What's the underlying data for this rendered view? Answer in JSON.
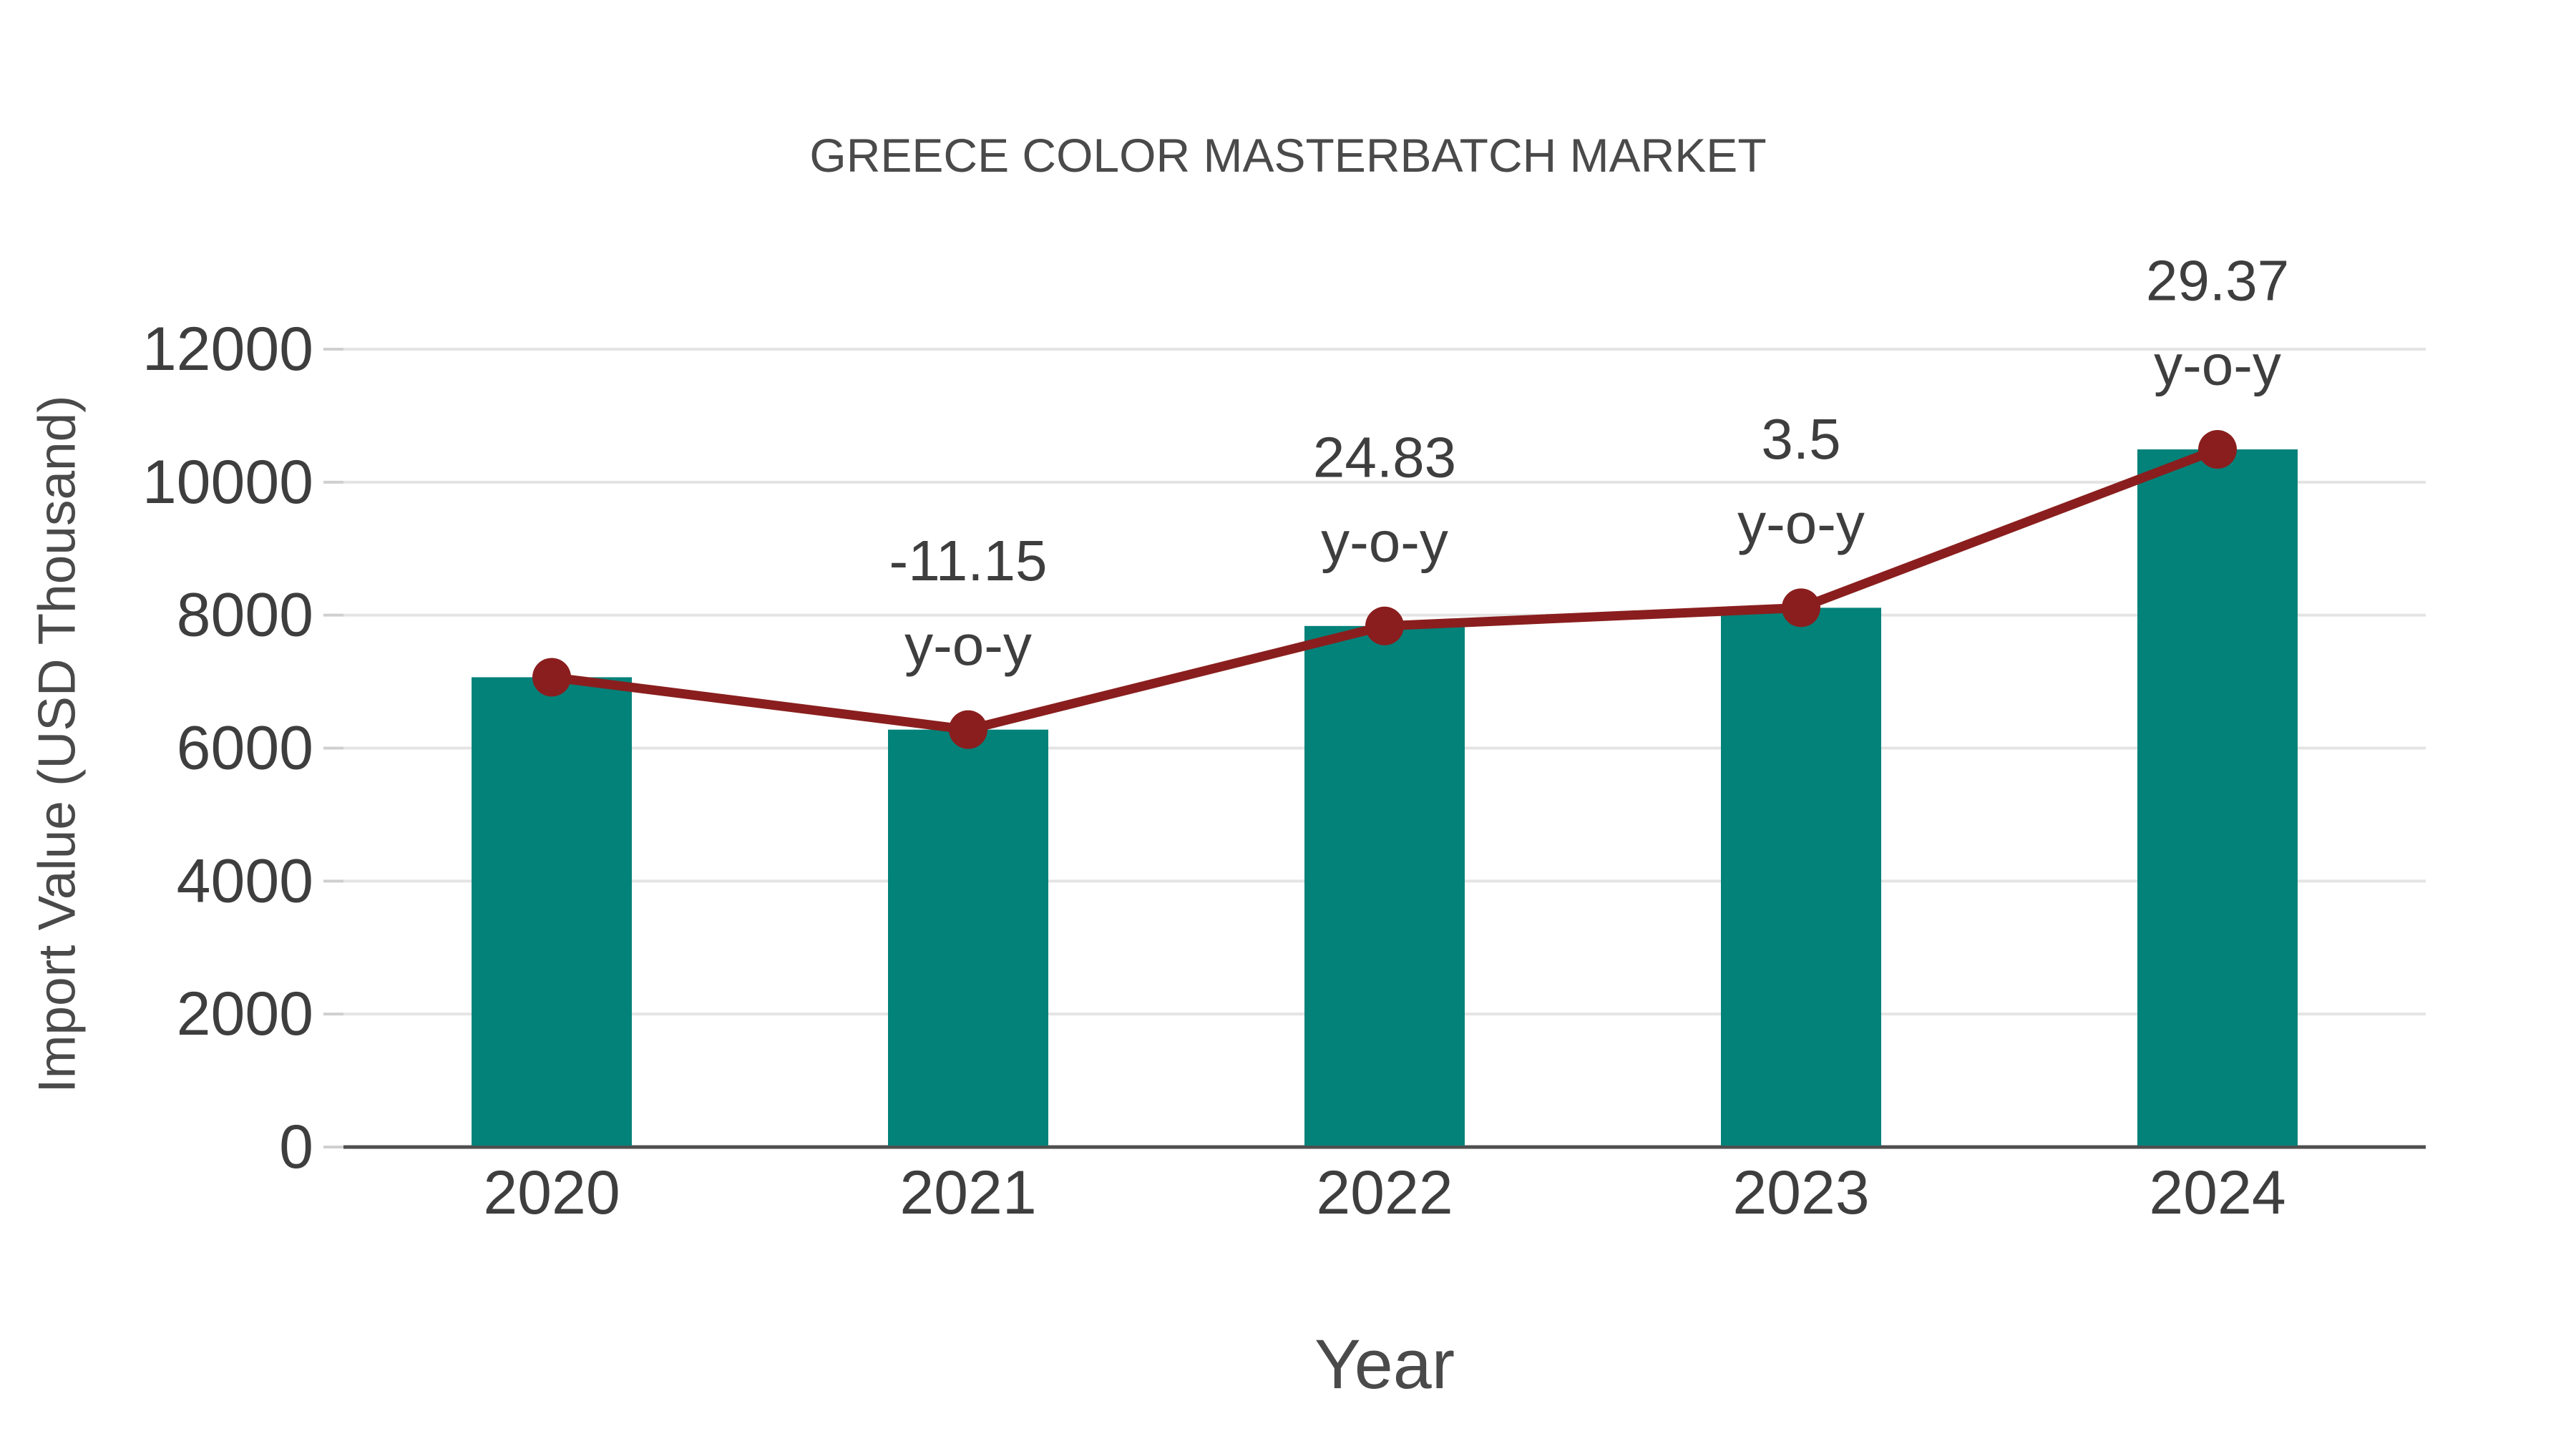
{
  "chart_data": {
    "type": "bar",
    "title": "GREECE COLOR MASTERBATCH MARKET",
    "xlabel": "Year",
    "ylabel": "Import Value (USD Thousand)",
    "categories": [
      "2020",
      "2021",
      "2022",
      "2023",
      "2024"
    ],
    "series": [
      {
        "name": "import-value-bars",
        "type": "bar",
        "values": [
          7066,
          6278,
          7837,
          8111,
          10493
        ]
      },
      {
        "name": "import-value-trend",
        "type": "line",
        "values": [
          7066,
          6278,
          7837,
          8111,
          10493
        ]
      }
    ],
    "annotations": [
      {
        "category": "2021",
        "value": "-11.15",
        "unit": "y-o-y"
      },
      {
        "category": "2022",
        "value": "24.83",
        "unit": "y-o-y"
      },
      {
        "category": "2023",
        "value": "3.5",
        "unit": "y-o-y"
      },
      {
        "category": "2024",
        "value": "29.37",
        "unit": "y-o-y"
      }
    ],
    "y_ticks": [
      0,
      2000,
      4000,
      6000,
      8000,
      10000,
      12000
    ],
    "ylim": [
      0,
      12000
    ],
    "grid": true,
    "legend": false,
    "colors": {
      "bar": "#038279",
      "line": "#8A1E1E",
      "marker": "#8A1E1E",
      "grid": "#e4e4e4",
      "tick": "#cfcfcf",
      "axis": "#4f4f4f",
      "text": "#3e3e3e",
      "title": "#4a4a4a"
    }
  }
}
